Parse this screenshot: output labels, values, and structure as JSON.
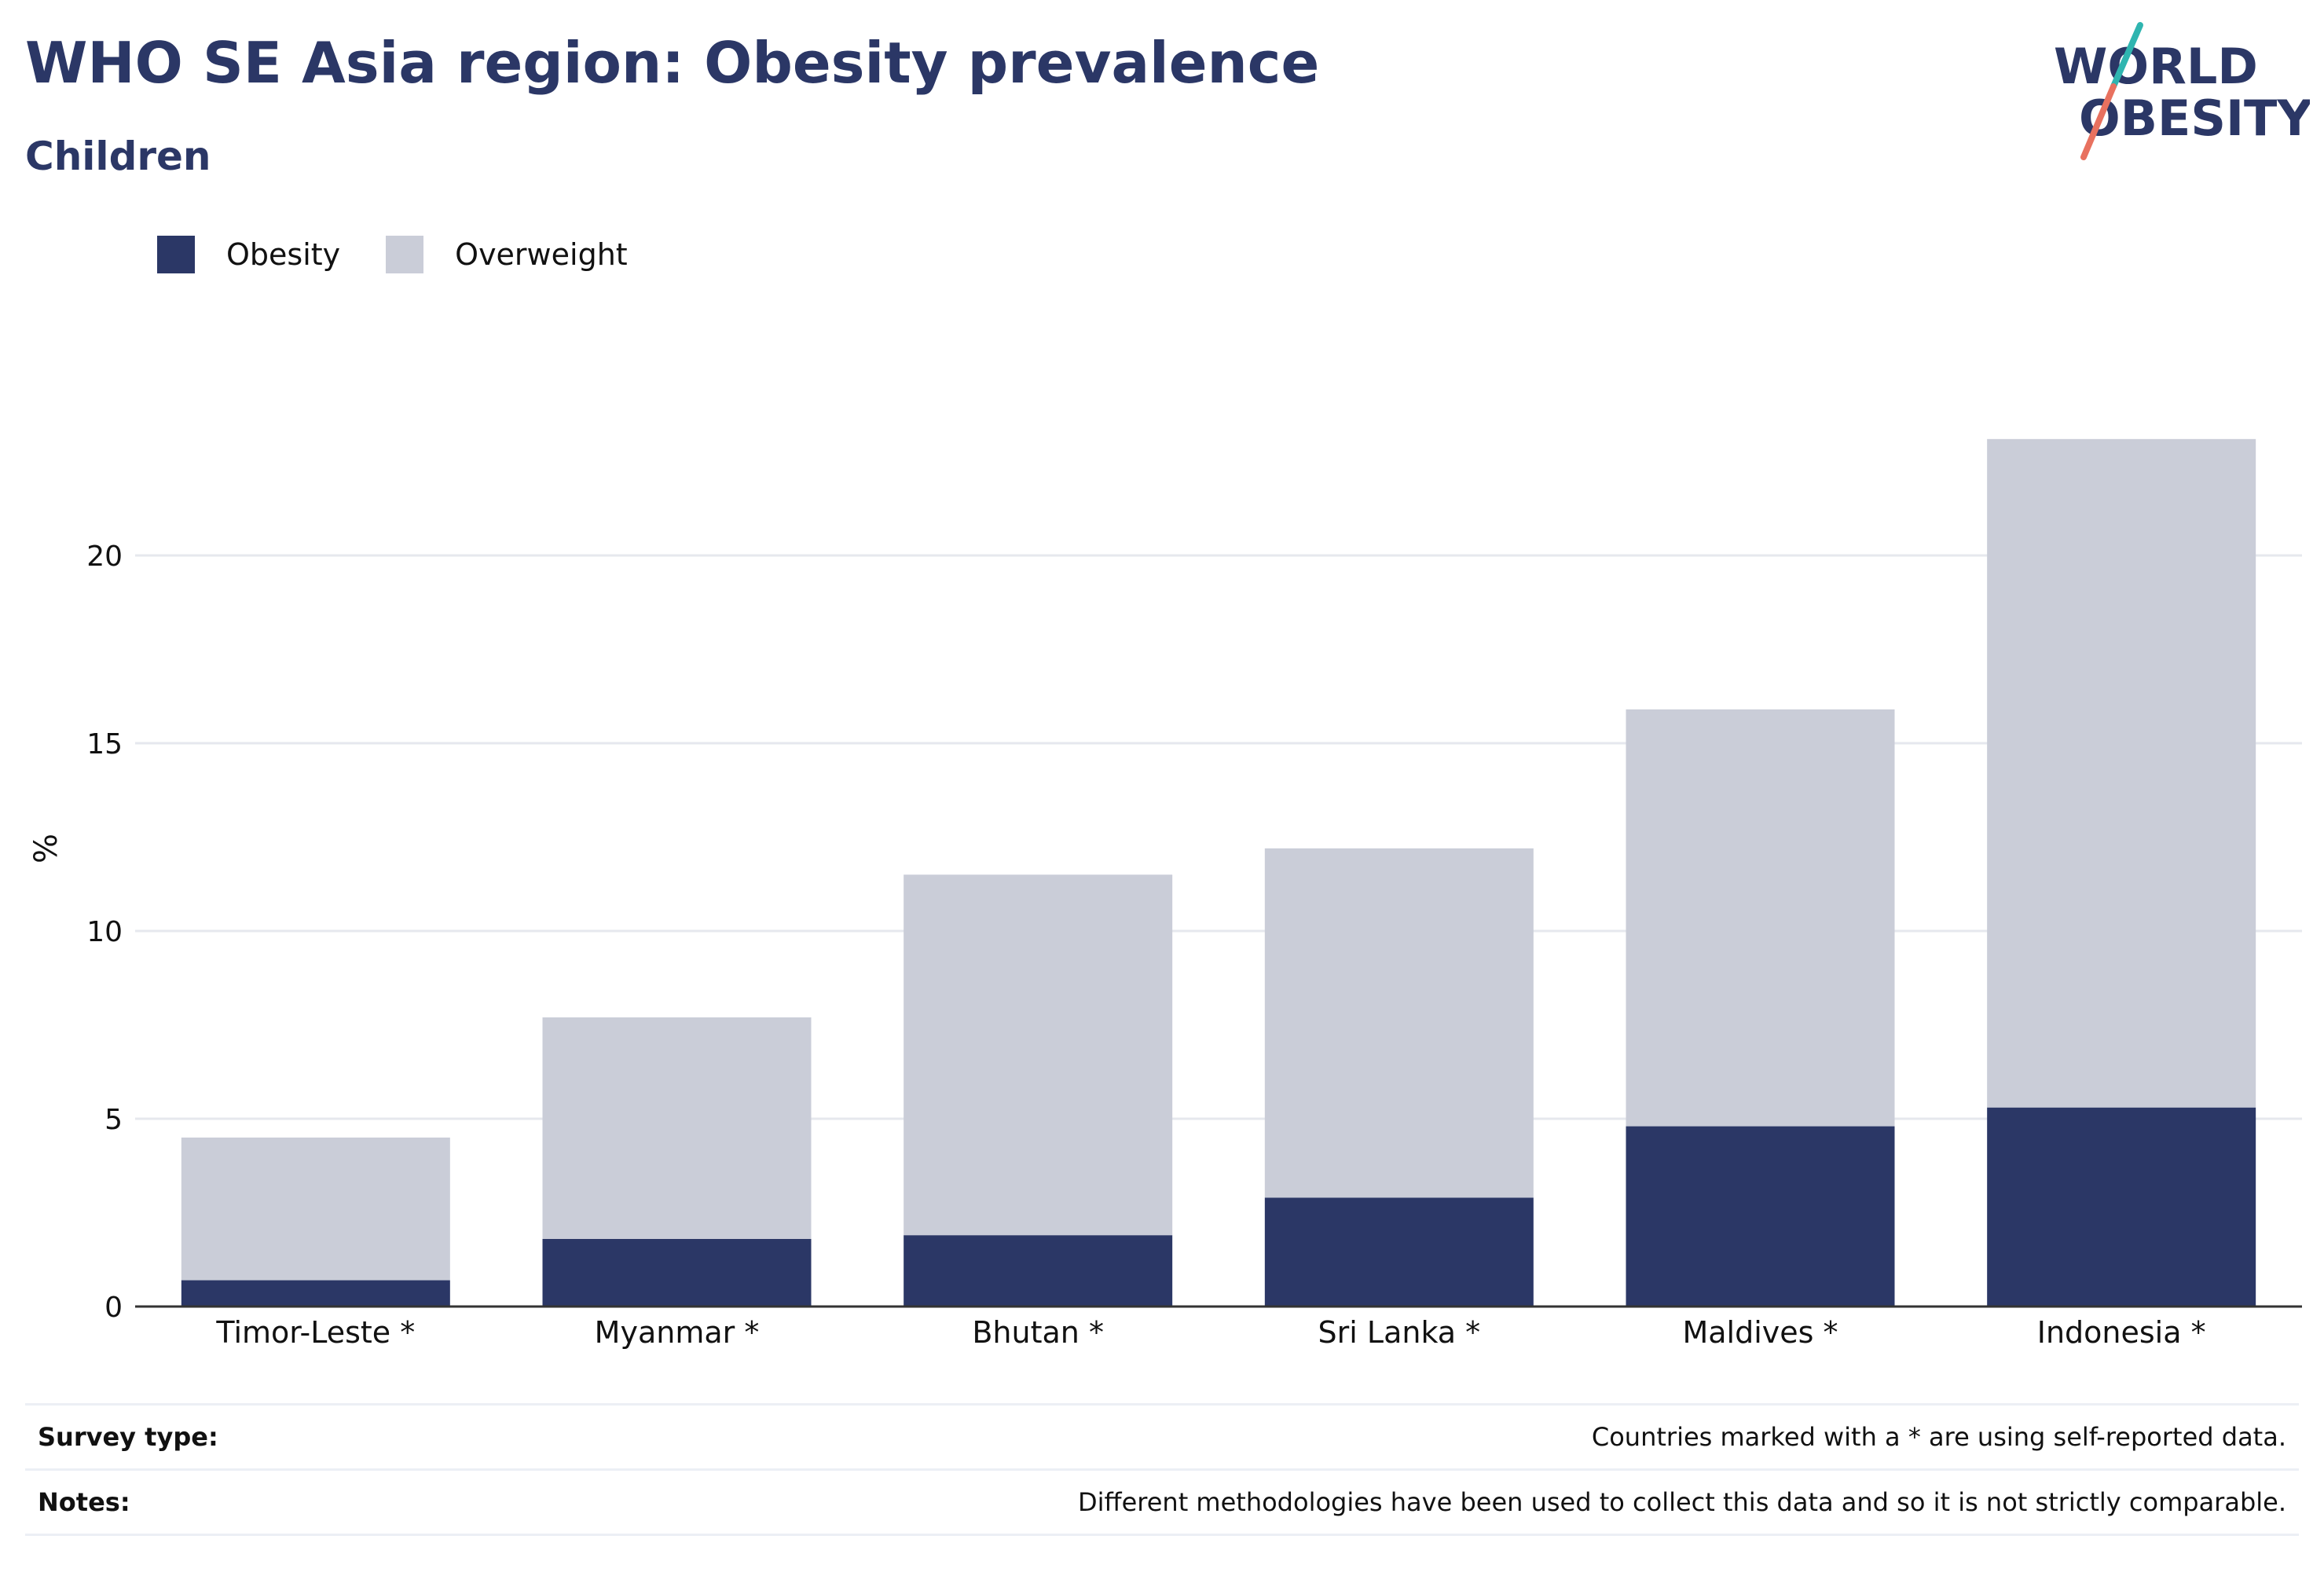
{
  "header": {
    "title": "WHO SE Asia region: Obesity prevalence",
    "subtitle": "Children"
  },
  "logo": {
    "line1": "WORLD",
    "line2": "OBESITY",
    "colors": {
      "text": "#2b3766",
      "slash_top": "#2fb5b0",
      "slash_bottom": "#e8715f"
    }
  },
  "chart_data": {
    "type": "bar",
    "stacked": true,
    "categories": [
      "Timor-Leste *",
      "Myanmar *",
      "Bhutan *",
      "Sri Lanka *",
      "Maldives *",
      "Indonesia *"
    ],
    "series": [
      {
        "name": "Obesity",
        "color": "#2b3766",
        "values": [
          0.7,
          1.8,
          1.9,
          2.9,
          4.8,
          5.3
        ]
      },
      {
        "name": "Overweight",
        "color": "#cacdd8",
        "values": [
          3.8,
          5.9,
          9.6,
          9.3,
          11.1,
          17.8
        ]
      }
    ],
    "ylabel": "%",
    "yticks": [
      0,
      5,
      10,
      15,
      20
    ],
    "ylim": [
      0,
      23.4
    ],
    "grid": true,
    "legend": "top-left"
  },
  "footer": {
    "survey_label": "Survey type:",
    "survey_text": "Countries marked with a * are using self-reported data.",
    "notes_label": "Notes:",
    "notes_text": "Different methodologies have been used to collect this data and so it is not strictly comparable."
  }
}
